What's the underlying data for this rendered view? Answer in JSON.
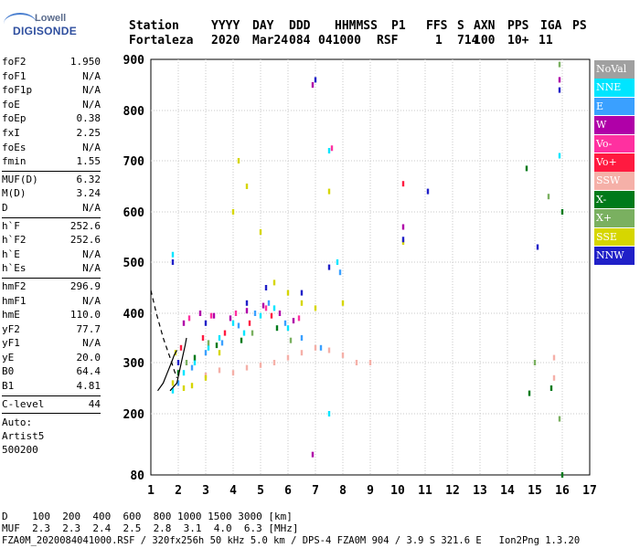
{
  "logo": {
    "top": "Lowell",
    "bottom": "DIGISONDE"
  },
  "header": {
    "labels": [
      "Station",
      "YYYY",
      "DAY",
      "DDD",
      "HHMMSS",
      "P1",
      "FFS",
      "S",
      "AXN",
      "PPS",
      "IGA",
      "PS"
    ],
    "values": [
      "Fortaleza",
      "2020",
      "Mar24",
      "084",
      "041000",
      "RSF",
      "1",
      "714",
      "100",
      "10+",
      "11"
    ]
  },
  "params": [
    [
      [
        "foF2",
        "1.950"
      ],
      [
        "foF1",
        "N/A"
      ],
      [
        "foF1p",
        "N/A"
      ],
      [
        "foE",
        "N/A"
      ],
      [
        "foEp",
        "0.38"
      ],
      [
        "fxI",
        "2.25"
      ],
      [
        "foEs",
        "N/A"
      ],
      [
        "fmin",
        "1.55"
      ]
    ],
    [
      [
        "MUF(D)",
        "6.32"
      ],
      [
        "M(D)",
        "3.24"
      ],
      [
        "D",
        "N/A"
      ]
    ],
    [
      [
        "h`F",
        "252.6"
      ],
      [
        "h`F2",
        "252.6"
      ],
      [
        "h`E",
        "N/A"
      ],
      [
        "h`Es",
        "N/A"
      ]
    ],
    [
      [
        "hmF2",
        "296.9"
      ],
      [
        "hmF1",
        "N/A"
      ],
      [
        "hmE",
        "110.0"
      ],
      [
        "yF2",
        "77.7"
      ],
      [
        "yF1",
        "N/A"
      ],
      [
        "yE",
        "20.0"
      ],
      [
        "B0",
        "64.4"
      ],
      [
        "B1",
        "4.81"
      ]
    ],
    [
      [
        "C-level",
        "44"
      ]
    ]
  ],
  "auto": {
    "line1": "Auto:",
    "line2": "Artist5",
    "line3": "500200"
  },
  "legend": [
    {
      "label": "NoVal",
      "color": "#a0a0a0"
    },
    {
      "label": "NNE",
      "color": "#00e5ff"
    },
    {
      "label": "E",
      "color": "#3aa0ff"
    },
    {
      "label": "W",
      "color": "#b000a8"
    },
    {
      "label": "Vo-",
      "color": "#ff30a0"
    },
    {
      "label": "Vo+",
      "color": "#ff1a40"
    },
    {
      "label": "SSW",
      "color": "#f5b0a8"
    },
    {
      "label": "X-",
      "color": "#007a1a"
    },
    {
      "label": "X+",
      "color": "#7ab060"
    },
    {
      "label": "SSE",
      "color": "#d6d600"
    },
    {
      "label": "NNW",
      "color": "#2020c8"
    }
  ],
  "chart_data": {
    "type": "scatter",
    "title": "",
    "xlabel": "",
    "ylabel": "",
    "xlim": [
      1,
      17
    ],
    "ylim": [
      80,
      900
    ],
    "x_ticks": [
      "1",
      "2",
      "3",
      "4",
      "5",
      "6",
      "7",
      "8",
      "9",
      "10",
      "11",
      "12",
      "13",
      "14",
      "15",
      "16",
      "17"
    ],
    "y_ticks": [
      "80",
      "200",
      "300",
      "400",
      "500",
      "600",
      "700",
      "800",
      "900"
    ],
    "grid": true,
    "series": [
      {
        "name": "NNE",
        "points": [
          [
            1.8,
            245
          ],
          [
            2.2,
            280
          ],
          [
            2.6,
            300
          ],
          [
            3.1,
            330
          ],
          [
            3.5,
            350
          ],
          [
            4.0,
            380
          ],
          [
            4.4,
            360
          ],
          [
            5.0,
            395
          ],
          [
            5.5,
            410
          ],
          [
            6.0,
            370
          ],
          [
            7.5,
            720
          ],
          [
            7.5,
            200
          ],
          [
            7.8,
            500
          ],
          [
            15.9,
            710
          ],
          [
            1.8,
            515
          ]
        ]
      },
      {
        "name": "E",
        "points": [
          [
            2.0,
            260
          ],
          [
            2.5,
            290
          ],
          [
            3.0,
            320
          ],
          [
            3.6,
            340
          ],
          [
            4.2,
            375
          ],
          [
            4.8,
            400
          ],
          [
            5.3,
            420
          ],
          [
            5.9,
            380
          ],
          [
            6.5,
            350
          ],
          [
            7.2,
            330
          ],
          [
            7.9,
            480
          ]
        ]
      },
      {
        "name": "W",
        "points": [
          [
            2.2,
            380
          ],
          [
            2.8,
            400
          ],
          [
            3.3,
            395
          ],
          [
            3.9,
            390
          ],
          [
            4.5,
            405
          ],
          [
            5.1,
            415
          ],
          [
            5.7,
            400
          ],
          [
            6.2,
            385
          ],
          [
            6.9,
            850
          ],
          [
            6.9,
            120
          ],
          [
            10.2,
            570
          ],
          [
            15.9,
            860
          ]
        ]
      },
      {
        "name": "Vo-",
        "points": [
          [
            2.4,
            390
          ],
          [
            3.2,
            395
          ],
          [
            4.1,
            400
          ],
          [
            5.2,
            410
          ],
          [
            6.4,
            390
          ],
          [
            7.6,
            725
          ]
        ]
      },
      {
        "name": "Vo+",
        "points": [
          [
            2.1,
            330
          ],
          [
            2.9,
            350
          ],
          [
            3.7,
            360
          ],
          [
            4.6,
            380
          ],
          [
            5.4,
            395
          ],
          [
            10.2,
            655
          ]
        ]
      },
      {
        "name": "SSW",
        "points": [
          [
            3.0,
            275
          ],
          [
            3.5,
            285
          ],
          [
            4.0,
            280
          ],
          [
            4.5,
            290
          ],
          [
            5.0,
            295
          ],
          [
            5.5,
            300
          ],
          [
            6.0,
            310
          ],
          [
            6.5,
            320
          ],
          [
            7.0,
            330
          ],
          [
            7.5,
            325
          ],
          [
            8.0,
            315
          ],
          [
            8.5,
            300
          ],
          [
            9.0,
            300
          ],
          [
            15.7,
            310
          ],
          [
            15.7,
            270
          ]
        ]
      },
      {
        "name": "X-",
        "points": [
          [
            2.0,
            280
          ],
          [
            2.6,
            310
          ],
          [
            3.4,
            335
          ],
          [
            4.3,
            345
          ],
          [
            5.6,
            370
          ],
          [
            14.7,
            685
          ],
          [
            14.8,
            240
          ],
          [
            15.6,
            250
          ],
          [
            16.0,
            600
          ],
          [
            16.0,
            80
          ]
        ]
      },
      {
        "name": "X+",
        "points": [
          [
            2.3,
            300
          ],
          [
            3.1,
            340
          ],
          [
            4.7,
            360
          ],
          [
            6.1,
            345
          ],
          [
            15.5,
            630
          ],
          [
            15.0,
            300
          ],
          [
            15.9,
            890
          ],
          [
            15.9,
            190
          ]
        ]
      },
      {
        "name": "SSE",
        "points": [
          [
            1.8,
            260
          ],
          [
            2.2,
            250
          ],
          [
            2.5,
            255
          ],
          [
            3.0,
            270
          ],
          [
            3.5,
            320
          ],
          [
            4.0,
            600
          ],
          [
            4.2,
            700
          ],
          [
            4.5,
            650
          ],
          [
            5.0,
            560
          ],
          [
            5.5,
            460
          ],
          [
            6.0,
            440
          ],
          [
            6.5,
            420
          ],
          [
            7.0,
            410
          ],
          [
            7.5,
            640
          ],
          [
            8.0,
            420
          ],
          [
            10.2,
            540
          ],
          [
            1.9,
            320
          ]
        ]
      },
      {
        "name": "NNW",
        "points": [
          [
            1.8,
            500
          ],
          [
            2.0,
            300
          ],
          [
            3.0,
            380
          ],
          [
            4.5,
            420
          ],
          [
            5.2,
            450
          ],
          [
            6.5,
            440
          ],
          [
            7.0,
            860
          ],
          [
            7.5,
            490
          ],
          [
            10.2,
            545
          ],
          [
            11.1,
            640
          ],
          [
            15.1,
            530
          ],
          [
            15.9,
            840
          ]
        ]
      },
      {
        "name": "NoVal",
        "points": []
      }
    ],
    "profile_curve": [
      [
        1.7,
        245
      ],
      [
        1.95,
        260
      ],
      [
        2.05,
        285
      ],
      [
        2.15,
        310
      ],
      [
        2.25,
        335
      ],
      [
        2.3,
        350
      ]
    ],
    "trace_curve": [
      [
        1.25,
        245
      ],
      [
        1.45,
        260
      ],
      [
        1.6,
        280
      ],
      [
        1.75,
        300
      ],
      [
        1.85,
        315
      ],
      [
        1.95,
        325
      ]
    ],
    "dashed_curve": [
      [
        1.0,
        445
      ],
      [
        1.2,
        400
      ],
      [
        1.45,
        350
      ],
      [
        1.7,
        310
      ],
      [
        1.85,
        285
      ],
      [
        1.95,
        270
      ]
    ]
  },
  "mufTable": {
    "row1": "D    100  200  400  600  800 1000 1500 3000 [km]",
    "row2": "MUF  2.3  2.3  2.4  2.5  2.8  3.1  4.0  6.3 [MHz]"
  },
  "footer": {
    "file": "FZA0M_2020084041000.RSF / 320fx256h 50 kHz 5.0 km / DPS-4 FZA0M 904 / 3.9 S 321.6 E   Ion2Png 1.3.20"
  }
}
